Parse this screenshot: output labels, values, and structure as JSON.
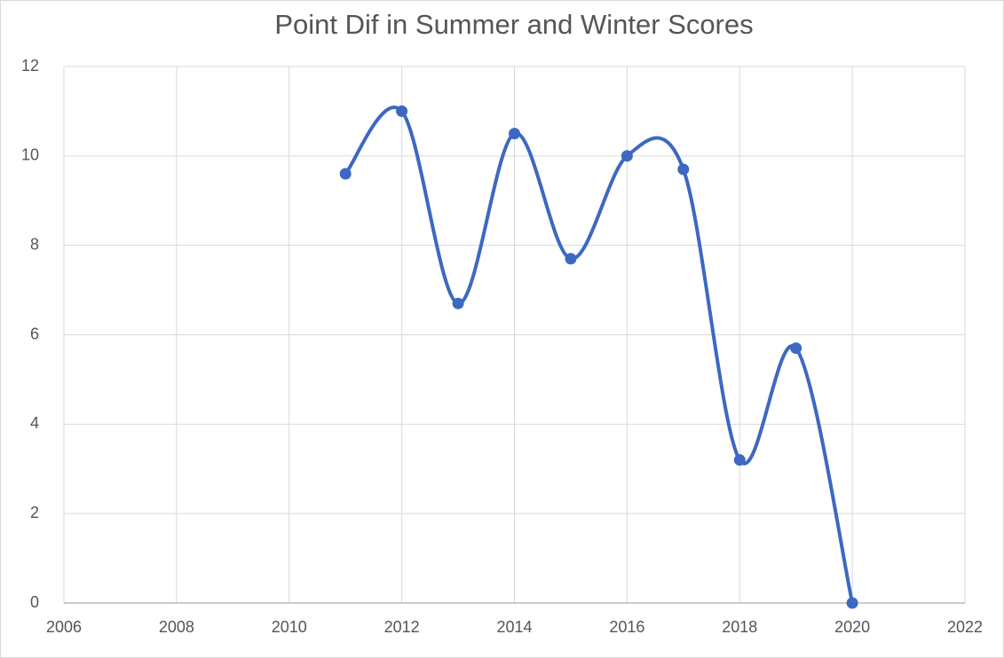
{
  "chart_data": {
    "type": "line",
    "title": "Point Dif in Summer and Winter Scores",
    "x": [
      2011,
      2012,
      2013,
      2014,
      2015,
      2016,
      2017,
      2018,
      2019,
      2020
    ],
    "series": [
      {
        "name": "Point Dif",
        "color": "#3d68c2",
        "values": [
          9.6,
          11,
          6.7,
          10.5,
          7.7,
          10,
          9.7,
          3.2,
          5.7,
          0
        ]
      }
    ],
    "xlim": [
      2006,
      2022
    ],
    "xticks": [
      2006,
      2008,
      2010,
      2012,
      2014,
      2016,
      2018,
      2020,
      2022
    ],
    "ylim": [
      0,
      12
    ],
    "yticks": [
      0,
      2,
      4,
      6,
      8,
      10,
      12
    ],
    "grid": true,
    "smooth": true
  }
}
